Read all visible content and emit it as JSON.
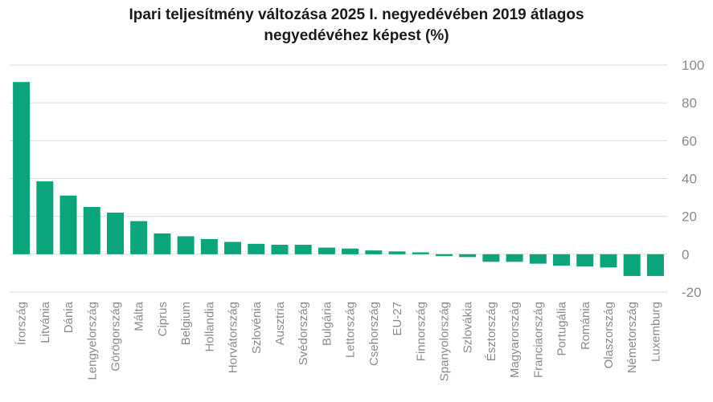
{
  "chart_data": {
    "type": "bar",
    "title_line1": "Ipari teljesítmény változása 2025 I. negyedévében 2019 átlagos",
    "title_line2": "negyedévéhez képest (%)",
    "categories": [
      "Írország",
      "Litvánia",
      "Dánia",
      "Lengyelország",
      "Görögország",
      "Málta",
      "Ciprus",
      "Belgium",
      "Hollandia",
      "Horvátország",
      "Szlovénia",
      "Ausztria",
      "Svédország",
      "Bulgária",
      "Lettország",
      "Csehország",
      "EU-27",
      "Finnország",
      "Spanyolország",
      "Szlovákia",
      "Észtország",
      "Magyarország",
      "Franciaország",
      "Portugália",
      "Románia",
      "Olaszország",
      "Németország",
      "Luxemburg"
    ],
    "values": [
      91,
      38.5,
      31,
      25,
      22,
      17.5,
      11,
      9.5,
      8,
      6.5,
      5.5,
      5,
      5,
      3.5,
      3,
      2,
      1.5,
      1,
      -1,
      -1.5,
      -4,
      -4,
      -5,
      -6,
      -6.5,
      -7,
      -11.5,
      -11.5
    ],
    "ylim": [
      -20,
      100
    ],
    "yticks": [
      100,
      80,
      60,
      40,
      20,
      0,
      -20
    ],
    "grid": true,
    "bar_color": "#0aa57a"
  }
}
